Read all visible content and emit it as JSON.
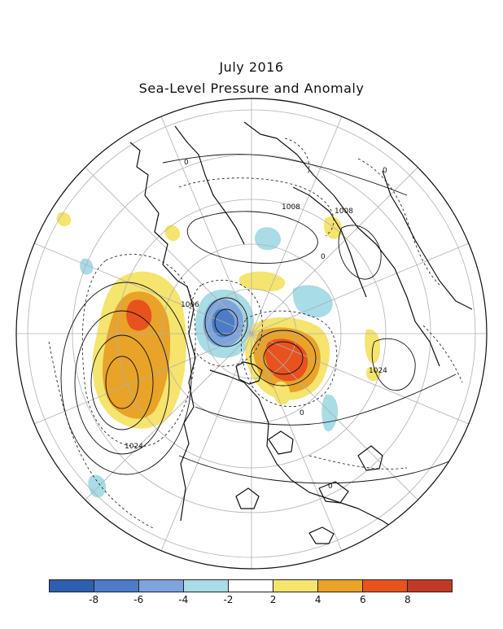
{
  "title": {
    "line1": "July 2016",
    "line2": "Sea-Level Pressure and Anomaly"
  },
  "contour_labels": {
    "low_1008_left": "1008",
    "low_1008_right": "1008",
    "low_1006": "1006",
    "high_1024_east": "1024",
    "high_1024_pacific": "1024",
    "zero_a": "0",
    "zero_b": "0",
    "zero_c": "0",
    "zero_d": "0",
    "zero_e": "0"
  },
  "colorbar": {
    "colors": [
      "#2d5fb0",
      "#4d7cc6",
      "#7fa4dc",
      "#a8dce6",
      "#ffffff",
      "#f5e46e",
      "#e8a328",
      "#e8521e",
      "#bf3b26"
    ],
    "tick_labels": [
      "-8",
      "-6",
      "-4",
      "-2",
      "2",
      "4",
      "6",
      "8"
    ]
  }
}
